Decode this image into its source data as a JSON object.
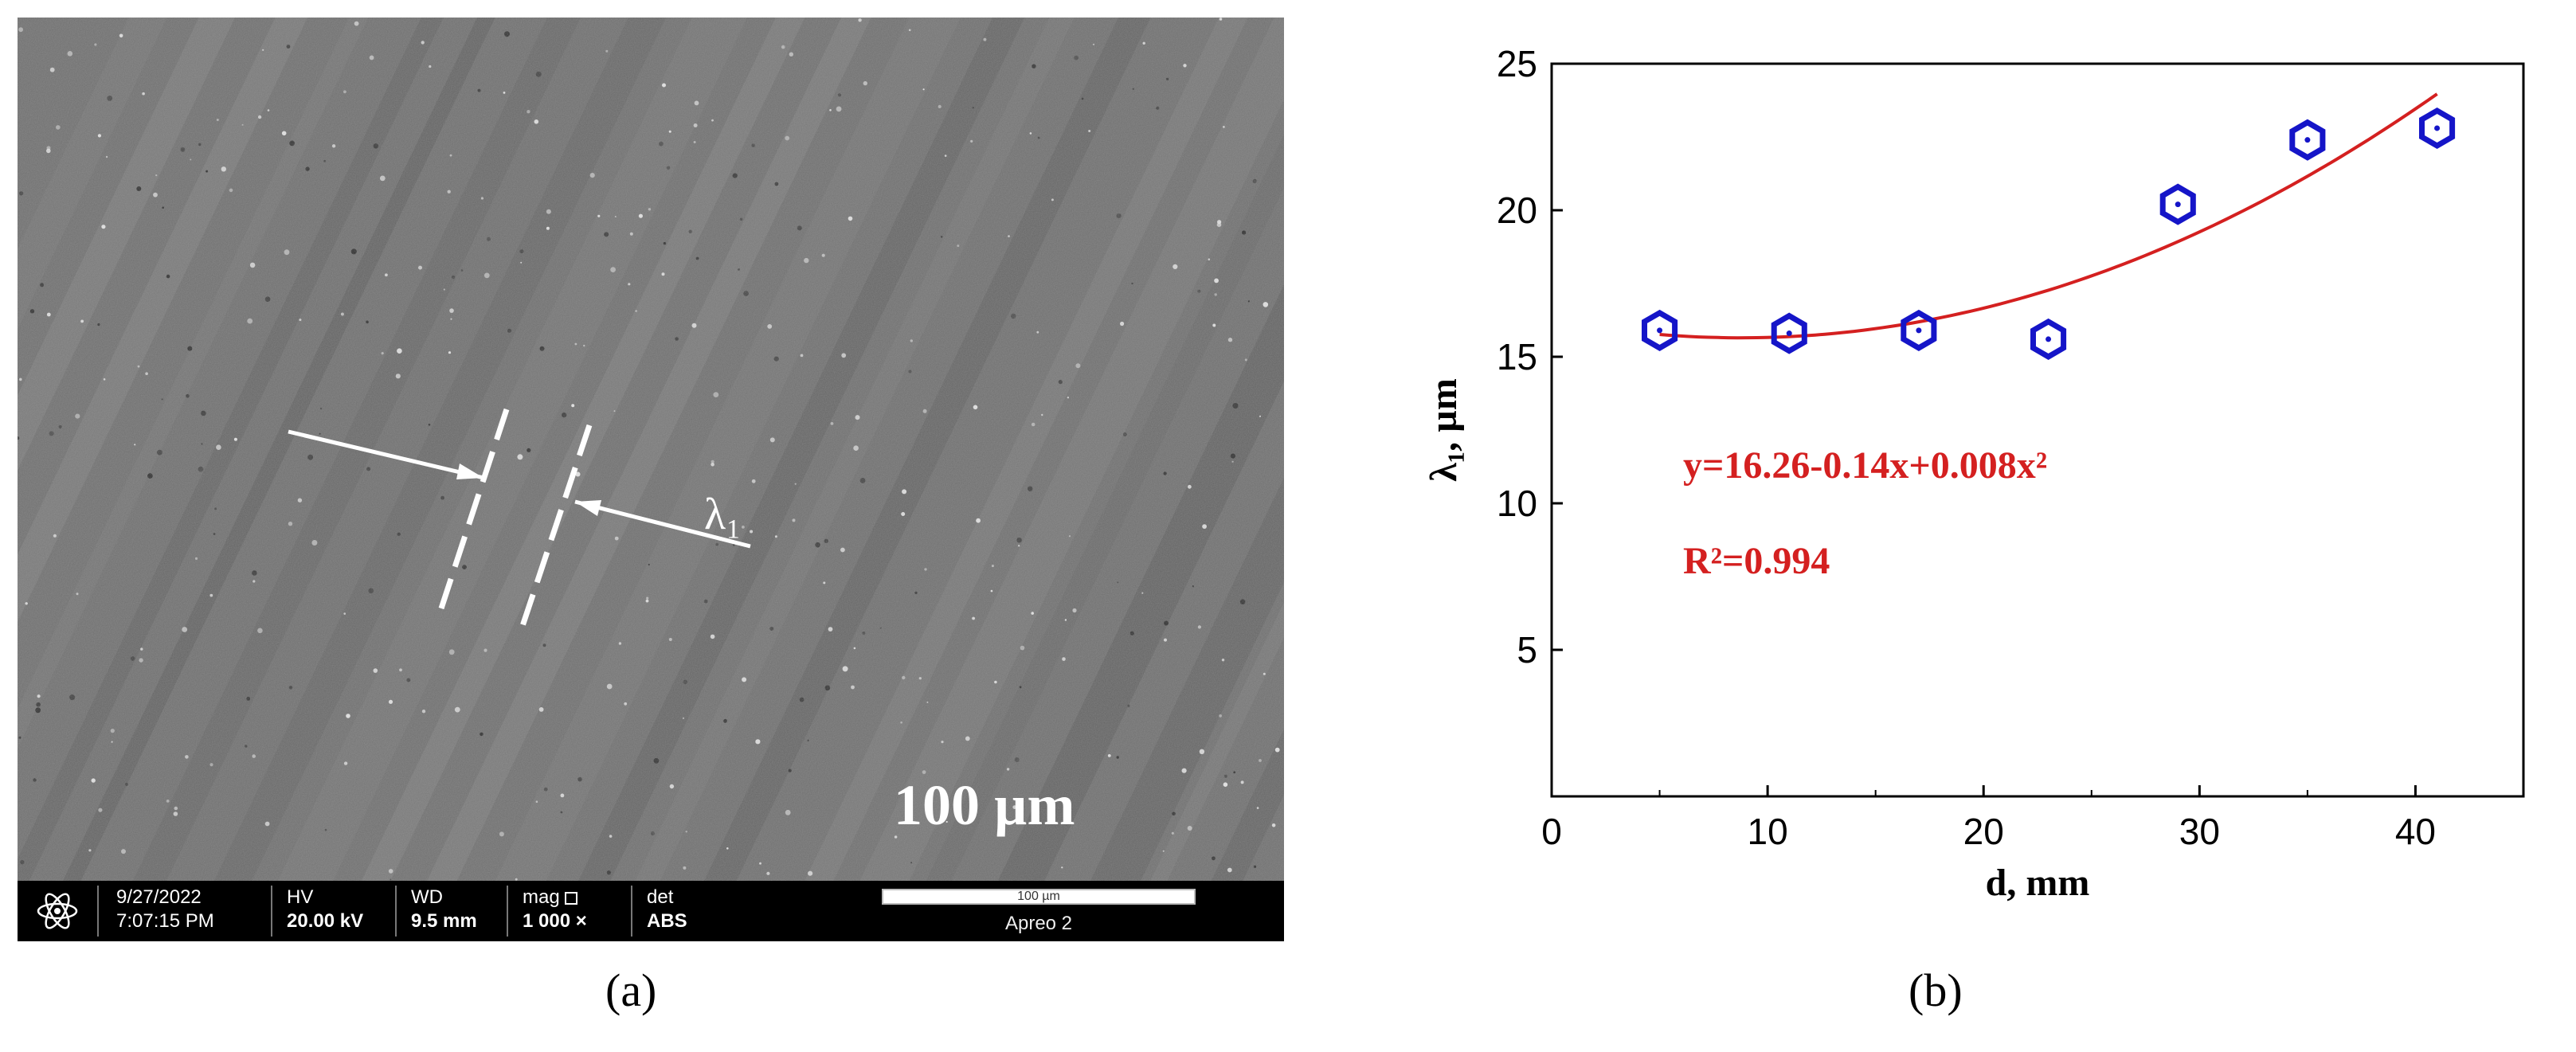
{
  "panel_a": {
    "label": "(a)",
    "annotation_lambda": "λ₁",
    "scale_text": "100 µm",
    "info_bar": {
      "date": "9/27/2022",
      "time": "7:07:15 PM",
      "hv_label": "HV",
      "hv_value": "20.00 kV",
      "wd_label": "WD",
      "wd_value": "9.5 mm",
      "mag_label": "mag",
      "mag_value": "1 000 ×",
      "det_label": "det",
      "det_value": "ABS",
      "scale_bar_label": "100 µm",
      "instrument": "Apreo 2"
    }
  },
  "panel_b": {
    "label": "(b)"
  },
  "chart_data": {
    "type": "scatter",
    "xlabel": "d, mm",
    "ylabel": "λ₁,  µm",
    "xlim": [
      0,
      45
    ],
    "ylim": [
      0,
      25
    ],
    "xticks": [
      0,
      10,
      20,
      30,
      40
    ],
    "yticks": [
      5,
      10,
      15,
      20,
      25
    ],
    "x": [
      5,
      11,
      17,
      23,
      29,
      35,
      41
    ],
    "y": [
      15.9,
      15.8,
      15.9,
      15.6,
      20.2,
      22.4,
      22.8
    ],
    "fit": {
      "type": "polynomial",
      "coefficients": [
        16.26,
        -0.14,
        0.008
      ],
      "x_range": [
        5,
        41
      ]
    },
    "equation_text": "y=16.26-0.14x+0.008x²",
    "r2_text": "R²=0.994",
    "marker_color": "#1515c8",
    "fit_color": "#d42020",
    "grid": false
  }
}
